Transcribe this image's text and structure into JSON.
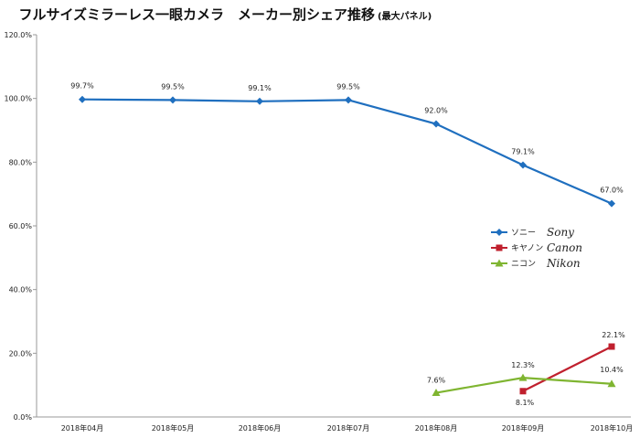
{
  "chart_data": {
    "type": "line",
    "title": "フルサイズミラーレス一眼カメラ　メーカー別シェア推移",
    "subtitle": "(最大パネル)",
    "categories": [
      "2018年04月",
      "2018年05月",
      "2018年06月",
      "2018年07月",
      "2018年08月",
      "2018年09月",
      "2018年10月"
    ],
    "ylim": [
      0,
      120
    ],
    "yticks": [
      0,
      20,
      40,
      60,
      80,
      100,
      120
    ],
    "ytick_labels": [
      "0.0%",
      "20.0%",
      "40.0%",
      "60.0%",
      "80.0%",
      "100.0%",
      "120.0%"
    ],
    "grid": false,
    "legend_position": "right",
    "series": [
      {
        "name": "ソニー",
        "alias": "Sony",
        "color": "#1f6fbf",
        "marker": "diamond",
        "values": [
          99.7,
          99.5,
          99.1,
          99.5,
          92.0,
          79.1,
          67.0
        ],
        "labels": [
          "99.7%",
          "99.5%",
          "99.1%",
          "99.5%",
          "92.0%",
          "79.1%",
          "67.0%"
        ]
      },
      {
        "name": "キヤノン",
        "alias": "Canon",
        "color": "#c0202e",
        "marker": "square",
        "values": [
          null,
          null,
          null,
          null,
          null,
          8.1,
          22.1
        ],
        "labels": [
          null,
          null,
          null,
          null,
          null,
          "8.1%",
          "22.1%"
        ]
      },
      {
        "name": "ニコン",
        "alias": "Nikon",
        "color": "#7fb531",
        "marker": "triangle",
        "values": [
          null,
          null,
          null,
          null,
          7.6,
          12.3,
          10.4
        ],
        "labels": [
          null,
          null,
          null,
          null,
          "7.6%",
          "12.3%",
          "10.4%"
        ]
      }
    ]
  }
}
